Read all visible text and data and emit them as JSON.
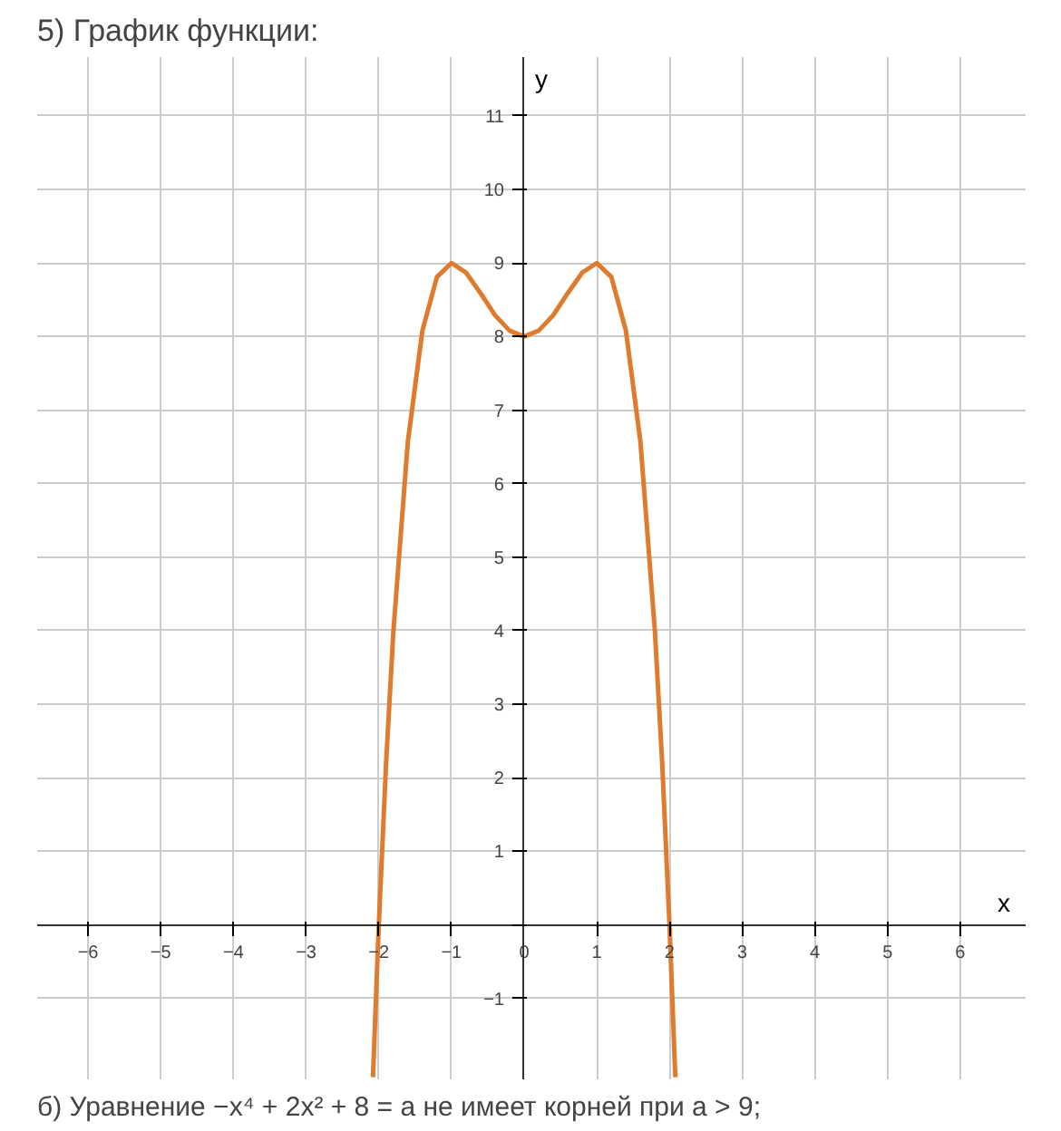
{
  "chart_data": {
    "type": "line",
    "title": "5) График функции:",
    "xlabel": "x",
    "ylabel": "y",
    "annotations": [
      "б) Уравнение −x⁴ + 2x² + 8 = a не имеет корней при a > 9;"
    ],
    "x": [
      -2.08,
      -2,
      -1.9,
      -1.8,
      -1.6,
      -1.4,
      -1.2,
      -1,
      -0.8,
      -0.6,
      -0.4,
      -0.2,
      0,
      0.2,
      0.4,
      0.6,
      0.8,
      1,
      1.2,
      1.4,
      1.6,
      1.8,
      1.9,
      2,
      2.08
    ],
    "series": [
      {
        "color": "#e07b2e",
        "values": [
          -2.07,
          0,
          2.19,
          3.98,
          6.57,
          8.08,
          8.81,
          9,
          8.87,
          8.59,
          8.29,
          8.08,
          8,
          8.08,
          8.29,
          8.59,
          8.87,
          9,
          8.81,
          8.08,
          6.57,
          3.98,
          2.19,
          0,
          -2.07
        ]
      }
    ],
    "xlim": [
      -6.7,
      6.9
    ],
    "ylim": [
      -2.1,
      11.8
    ],
    "xticks": [
      -6,
      -5,
      -4,
      -3,
      -2,
      -1,
      0,
      1,
      2,
      3,
      4,
      5,
      6
    ],
    "yticks": [
      -1,
      {
        "value": 0,
        "label": null
      },
      1,
      2,
      3,
      4,
      5,
      6,
      7,
      8,
      9,
      10,
      11
    ],
    "grid": true,
    "marker": "none",
    "line_style": "solid"
  }
}
